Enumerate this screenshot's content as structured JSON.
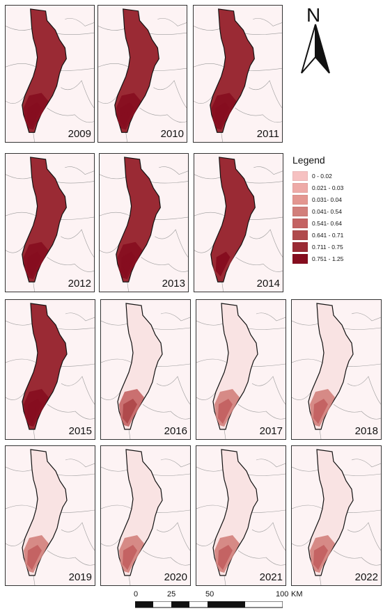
{
  "panels": [
    {
      "year": "2009",
      "intensity": 0.9
    },
    {
      "year": "2010",
      "intensity": 0.85
    },
    {
      "year": "2011",
      "intensity": 0.88
    },
    {
      "year": "2012",
      "intensity": 0.92
    },
    {
      "year": "2013",
      "intensity": 0.86
    },
    {
      "year": "2014",
      "intensity": 0.8
    },
    {
      "year": "2015",
      "intensity": 0.87
    },
    {
      "year": "2016",
      "intensity": 0.3
    },
    {
      "year": "2017",
      "intensity": 0.22
    },
    {
      "year": "2018",
      "intensity": 0.2
    },
    {
      "year": "2019",
      "intensity": 0.15
    },
    {
      "year": "2020",
      "intensity": 0.15
    },
    {
      "year": "2021",
      "intensity": 0.16
    },
    {
      "year": "2022",
      "intensity": 0.18
    }
  ],
  "north_label": "N",
  "legend": {
    "title": "Legend",
    "items": [
      {
        "label": "0 - 0.02",
        "color": "#f6c1c1"
      },
      {
        "label": "0.021 - 0.03",
        "color": "#eeaaa7"
      },
      {
        "label": "0.031- 0.04",
        "color": "#e39690"
      },
      {
        "label": "0.041- 0.54",
        "color": "#d27f7b"
      },
      {
        "label": "0.541- 0.64",
        "color": "#c46363"
      },
      {
        "label": "0.641 - 0.71",
        "color": "#b04a4c"
      },
      {
        "label": "0.711 - 0.75",
        "color": "#9a2a34"
      },
      {
        "label": "0.751 - 1.25",
        "color": "#860d1f"
      }
    ]
  },
  "scale": {
    "ticks": [
      "0",
      "25",
      "50",
      "100"
    ],
    "unit": "KM"
  }
}
